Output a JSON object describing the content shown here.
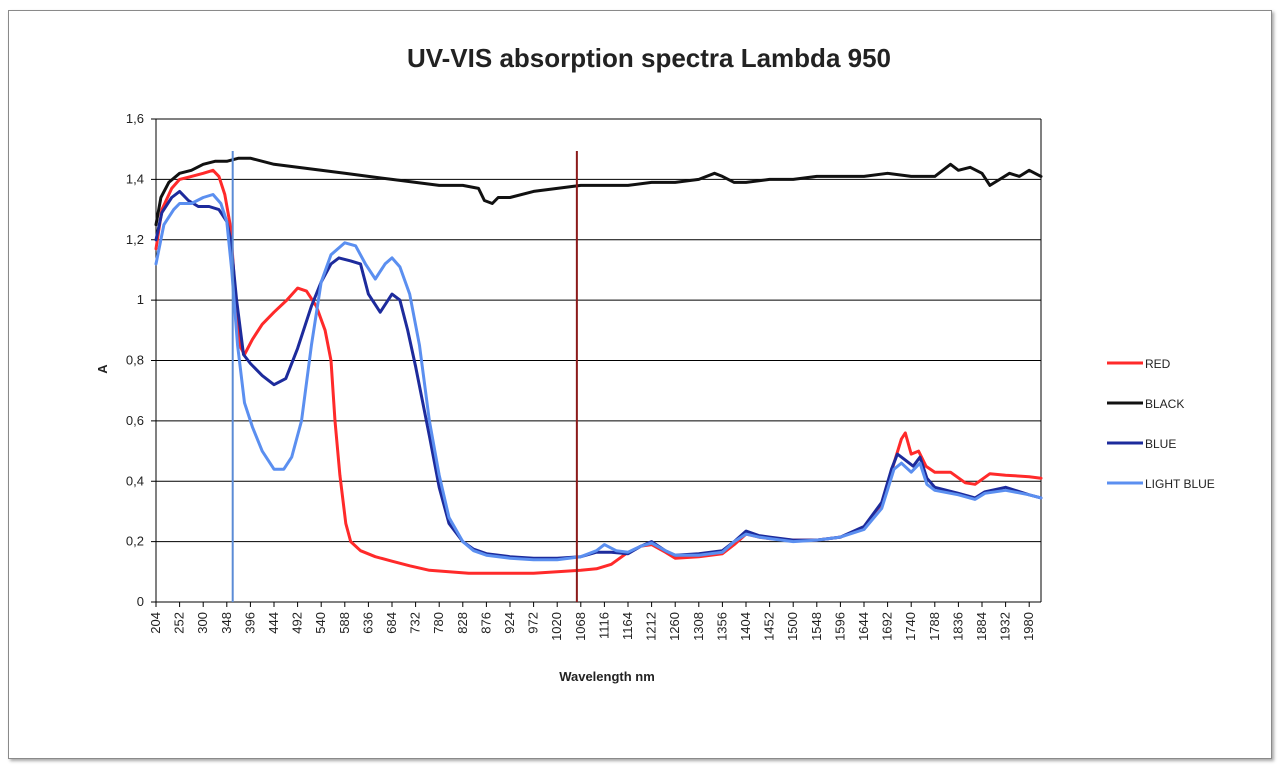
{
  "chart_data": {
    "type": "line",
    "title": "UV-VIS absorption spectra Lambda 950",
    "xlabel": "Wavelength nm",
    "ylabel": "A",
    "xlim": [
      204,
      2004
    ],
    "ylim": [
      0,
      1.6
    ],
    "y_ticks": [
      "0",
      "0,2",
      "0,4",
      "0,6",
      "0,8",
      "1",
      "1,2",
      "1,4",
      "1,6"
    ],
    "x_tick_labels": [
      "204",
      "252",
      "300",
      "348",
      "396",
      "444",
      "492",
      "540",
      "588",
      "636",
      "684",
      "732",
      "780",
      "828",
      "876",
      "924",
      "972",
      "1020",
      "1068",
      "1116",
      "1164",
      "1212",
      "1260",
      "1308",
      "1356",
      "1404",
      "1452",
      "1500",
      "1548",
      "1596",
      "1644",
      "1692",
      "1740",
      "1788",
      "1836",
      "1884",
      "1932",
      "1980"
    ],
    "grid": "horizontal",
    "legend_position": "right",
    "markers": [
      {
        "x": 360,
        "color": "#5b8bd6"
      },
      {
        "x": 1060,
        "color": "#8b1a1a"
      }
    ],
    "series": [
      {
        "name": "RED",
        "color": "#ff2a2a",
        "points": [
          [
            204,
            1.17
          ],
          [
            216,
            1.3
          ],
          [
            236,
            1.37
          ],
          [
            252,
            1.4
          ],
          [
            276,
            1.41
          ],
          [
            300,
            1.42
          ],
          [
            320,
            1.43
          ],
          [
            332,
            1.41
          ],
          [
            344,
            1.35
          ],
          [
            356,
            1.24
          ],
          [
            366,
            1.0
          ],
          [
            374,
            0.85
          ],
          [
            384,
            0.82
          ],
          [
            400,
            0.87
          ],
          [
            420,
            0.92
          ],
          [
            444,
            0.96
          ],
          [
            470,
            1.0
          ],
          [
            492,
            1.04
          ],
          [
            510,
            1.03
          ],
          [
            530,
            0.98
          ],
          [
            548,
            0.9
          ],
          [
            560,
            0.8
          ],
          [
            568,
            0.6
          ],
          [
            578,
            0.42
          ],
          [
            590,
            0.26
          ],
          [
            600,
            0.2
          ],
          [
            620,
            0.17
          ],
          [
            650,
            0.15
          ],
          [
            684,
            0.135
          ],
          [
            720,
            0.12
          ],
          [
            760,
            0.105
          ],
          [
            800,
            0.1
          ],
          [
            840,
            0.095
          ],
          [
            880,
            0.095
          ],
          [
            924,
            0.095
          ],
          [
            972,
            0.095
          ],
          [
            1020,
            0.1
          ],
          [
            1068,
            0.105
          ],
          [
            1100,
            0.11
          ],
          [
            1130,
            0.125
          ],
          [
            1160,
            0.16
          ],
          [
            1190,
            0.185
          ],
          [
            1212,
            0.19
          ],
          [
            1240,
            0.165
          ],
          [
            1260,
            0.145
          ],
          [
            1308,
            0.15
          ],
          [
            1356,
            0.16
          ],
          [
            1380,
            0.19
          ],
          [
            1404,
            0.225
          ],
          [
            1430,
            0.215
          ],
          [
            1452,
            0.21
          ],
          [
            1500,
            0.205
          ],
          [
            1548,
            0.205
          ],
          [
            1596,
            0.215
          ],
          [
            1644,
            0.245
          ],
          [
            1680,
            0.32
          ],
          [
            1705,
            0.46
          ],
          [
            1720,
            0.54
          ],
          [
            1728,
            0.56
          ],
          [
            1740,
            0.49
          ],
          [
            1755,
            0.5
          ],
          [
            1770,
            0.45
          ],
          [
            1788,
            0.43
          ],
          [
            1820,
            0.43
          ],
          [
            1850,
            0.395
          ],
          [
            1870,
            0.39
          ],
          [
            1900,
            0.425
          ],
          [
            1932,
            0.42
          ],
          [
            1980,
            0.415
          ],
          [
            2004,
            0.41
          ]
        ]
      },
      {
        "name": "BLACK",
        "color": "#111111",
        "points": [
          [
            204,
            1.25
          ],
          [
            214,
            1.34
          ],
          [
            230,
            1.39
          ],
          [
            252,
            1.42
          ],
          [
            276,
            1.43
          ],
          [
            300,
            1.45
          ],
          [
            324,
            1.46
          ],
          [
            348,
            1.46
          ],
          [
            372,
            1.47
          ],
          [
            396,
            1.47
          ],
          [
            444,
            1.45
          ],
          [
            492,
            1.44
          ],
          [
            540,
            1.43
          ],
          [
            588,
            1.42
          ],
          [
            636,
            1.41
          ],
          [
            684,
            1.4
          ],
          [
            732,
            1.39
          ],
          [
            780,
            1.38
          ],
          [
            828,
            1.38
          ],
          [
            860,
            1.37
          ],
          [
            872,
            1.33
          ],
          [
            888,
            1.32
          ],
          [
            900,
            1.34
          ],
          [
            924,
            1.34
          ],
          [
            972,
            1.36
          ],
          [
            1020,
            1.37
          ],
          [
            1068,
            1.38
          ],
          [
            1116,
            1.38
          ],
          [
            1164,
            1.38
          ],
          [
            1212,
            1.39
          ],
          [
            1260,
            1.39
          ],
          [
            1308,
            1.4
          ],
          [
            1340,
            1.42
          ],
          [
            1356,
            1.41
          ],
          [
            1380,
            1.39
          ],
          [
            1404,
            1.39
          ],
          [
            1452,
            1.4
          ],
          [
            1500,
            1.4
          ],
          [
            1548,
            1.41
          ],
          [
            1596,
            1.41
          ],
          [
            1644,
            1.41
          ],
          [
            1692,
            1.42
          ],
          [
            1740,
            1.41
          ],
          [
            1788,
            1.41
          ],
          [
            1820,
            1.45
          ],
          [
            1836,
            1.43
          ],
          [
            1860,
            1.44
          ],
          [
            1884,
            1.42
          ],
          [
            1900,
            1.38
          ],
          [
            1920,
            1.4
          ],
          [
            1940,
            1.42
          ],
          [
            1960,
            1.41
          ],
          [
            1980,
            1.43
          ],
          [
            2004,
            1.41
          ]
        ]
      },
      {
        "name": "BLUE",
        "color": "#1d2b9c",
        "points": [
          [
            204,
            1.2
          ],
          [
            216,
            1.29
          ],
          [
            236,
            1.34
          ],
          [
            252,
            1.36
          ],
          [
            270,
            1.33
          ],
          [
            290,
            1.31
          ],
          [
            312,
            1.31
          ],
          [
            332,
            1.3
          ],
          [
            348,
            1.26
          ],
          [
            356,
            1.2
          ],
          [
            368,
            1.0
          ],
          [
            382,
            0.82
          ],
          [
            396,
            0.79
          ],
          [
            420,
            0.75
          ],
          [
            444,
            0.72
          ],
          [
            468,
            0.74
          ],
          [
            492,
            0.84
          ],
          [
            520,
            0.98
          ],
          [
            540,
            1.06
          ],
          [
            560,
            1.12
          ],
          [
            576,
            1.14
          ],
          [
            600,
            1.13
          ],
          [
            620,
            1.12
          ],
          [
            636,
            1.02
          ],
          [
            660,
            0.96
          ],
          [
            684,
            1.02
          ],
          [
            700,
            1.0
          ],
          [
            716,
            0.9
          ],
          [
            732,
            0.78
          ],
          [
            760,
            0.55
          ],
          [
            780,
            0.38
          ],
          [
            800,
            0.26
          ],
          [
            828,
            0.2
          ],
          [
            850,
            0.175
          ],
          [
            876,
            0.16
          ],
          [
            924,
            0.15
          ],
          [
            972,
            0.145
          ],
          [
            1020,
            0.145
          ],
          [
            1068,
            0.15
          ],
          [
            1100,
            0.165
          ],
          [
            1130,
            0.165
          ],
          [
            1164,
            0.16
          ],
          [
            1190,
            0.185
          ],
          [
            1212,
            0.2
          ],
          [
            1240,
            0.17
          ],
          [
            1260,
            0.155
          ],
          [
            1308,
            0.16
          ],
          [
            1356,
            0.17
          ],
          [
            1380,
            0.2
          ],
          [
            1404,
            0.235
          ],
          [
            1430,
            0.22
          ],
          [
            1452,
            0.215
          ],
          [
            1500,
            0.205
          ],
          [
            1548,
            0.205
          ],
          [
            1596,
            0.215
          ],
          [
            1644,
            0.25
          ],
          [
            1680,
            0.33
          ],
          [
            1700,
            0.44
          ],
          [
            1712,
            0.49
          ],
          [
            1728,
            0.47
          ],
          [
            1744,
            0.45
          ],
          [
            1758,
            0.48
          ],
          [
            1772,
            0.41
          ],
          [
            1788,
            0.38
          ],
          [
            1836,
            0.36
          ],
          [
            1870,
            0.345
          ],
          [
            1890,
            0.365
          ],
          [
            1932,
            0.38
          ],
          [
            1980,
            0.355
          ],
          [
            2004,
            0.345
          ]
        ]
      },
      {
        "name": "LIGHT BLUE",
        "color": "#5b8ff0",
        "points": [
          [
            204,
            1.12
          ],
          [
            220,
            1.25
          ],
          [
            240,
            1.3
          ],
          [
            252,
            1.32
          ],
          [
            276,
            1.32
          ],
          [
            300,
            1.34
          ],
          [
            320,
            1.35
          ],
          [
            336,
            1.32
          ],
          [
            348,
            1.26
          ],
          [
            358,
            1.1
          ],
          [
            370,
            0.85
          ],
          [
            384,
            0.66
          ],
          [
            400,
            0.58
          ],
          [
            420,
            0.5
          ],
          [
            444,
            0.44
          ],
          [
            464,
            0.44
          ],
          [
            480,
            0.48
          ],
          [
            500,
            0.6
          ],
          [
            520,
            0.85
          ],
          [
            540,
            1.06
          ],
          [
            560,
            1.15
          ],
          [
            588,
            1.19
          ],
          [
            610,
            1.18
          ],
          [
            630,
            1.12
          ],
          [
            650,
            1.07
          ],
          [
            670,
            1.12
          ],
          [
            684,
            1.14
          ],
          [
            700,
            1.11
          ],
          [
            720,
            1.02
          ],
          [
            740,
            0.85
          ],
          [
            760,
            0.6
          ],
          [
            780,
            0.42
          ],
          [
            800,
            0.28
          ],
          [
            828,
            0.2
          ],
          [
            850,
            0.17
          ],
          [
            876,
            0.155
          ],
          [
            924,
            0.145
          ],
          [
            972,
            0.14
          ],
          [
            1020,
            0.14
          ],
          [
            1068,
            0.15
          ],
          [
            1100,
            0.17
          ],
          [
            1116,
            0.19
          ],
          [
            1140,
            0.17
          ],
          [
            1164,
            0.165
          ],
          [
            1190,
            0.185
          ],
          [
            1212,
            0.195
          ],
          [
            1240,
            0.17
          ],
          [
            1260,
            0.155
          ],
          [
            1308,
            0.155
          ],
          [
            1356,
            0.165
          ],
          [
            1380,
            0.2
          ],
          [
            1404,
            0.225
          ],
          [
            1430,
            0.215
          ],
          [
            1452,
            0.21
          ],
          [
            1500,
            0.2
          ],
          [
            1548,
            0.205
          ],
          [
            1596,
            0.215
          ],
          [
            1644,
            0.24
          ],
          [
            1680,
            0.31
          ],
          [
            1705,
            0.44
          ],
          [
            1720,
            0.46
          ],
          [
            1740,
            0.43
          ],
          [
            1758,
            0.46
          ],
          [
            1772,
            0.39
          ],
          [
            1788,
            0.37
          ],
          [
            1836,
            0.355
          ],
          [
            1870,
            0.34
          ],
          [
            1890,
            0.36
          ],
          [
            1932,
            0.37
          ],
          [
            1980,
            0.355
          ],
          [
            2004,
            0.345
          ]
        ]
      }
    ]
  }
}
